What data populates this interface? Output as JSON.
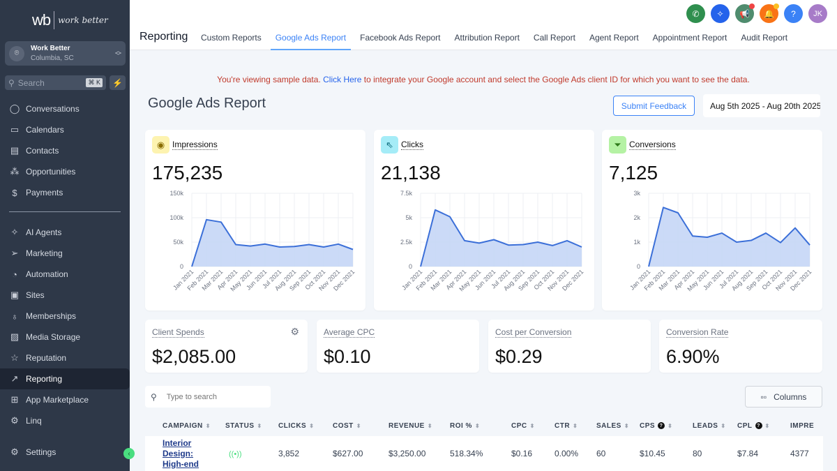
{
  "sidebar": {
    "logo": {
      "mark": "wb",
      "tagline": "work better"
    },
    "account": {
      "name": "Work Better",
      "location": "Columbia, SC"
    },
    "search": {
      "placeholder": "Search",
      "shortcut": "⌘ K"
    },
    "items_top": [
      {
        "label": "Conversations",
        "icon": "chat-bubble-icon"
      },
      {
        "label": "Calendars",
        "icon": "calendar-icon"
      },
      {
        "label": "Contacts",
        "icon": "contacts-book-icon"
      },
      {
        "label": "Opportunities",
        "icon": "opportunities-icon"
      },
      {
        "label": "Payments",
        "icon": "payments-icon"
      }
    ],
    "items_bottom": [
      {
        "label": "AI Agents",
        "icon": "sparkle-icon"
      },
      {
        "label": "Marketing",
        "icon": "send-icon"
      },
      {
        "label": "Automation",
        "icon": "automation-icon"
      },
      {
        "label": "Sites",
        "icon": "sites-icon"
      },
      {
        "label": "Memberships",
        "icon": "award-icon"
      },
      {
        "label": "Media Storage",
        "icon": "image-icon"
      },
      {
        "label": "Reputation",
        "icon": "star-icon"
      },
      {
        "label": "Reporting",
        "icon": "trend-up-icon",
        "active": true
      },
      {
        "label": "App Marketplace",
        "icon": "grid-icon"
      },
      {
        "label": "Linq",
        "icon": "gears-icon"
      }
    ],
    "settings": {
      "label": "Settings",
      "icon": "settings-gear-icon"
    }
  },
  "header": {
    "page_label": "Reporting",
    "tabs": [
      {
        "label": "Custom Reports"
      },
      {
        "label": "Google Ads Report",
        "active": true
      },
      {
        "label": "Facebook Ads Report"
      },
      {
        "label": "Attribution Report"
      },
      {
        "label": "Call Report"
      },
      {
        "label": "Agent Report"
      },
      {
        "label": "Appointment Report"
      },
      {
        "label": "Audit Report"
      }
    ],
    "icons": [
      {
        "name": "phone-icon",
        "glyph": "✆",
        "color": "#2f8f4e"
      },
      {
        "name": "ai-sparkle-icon",
        "glyph": "✧",
        "color": "#2563eb"
      },
      {
        "name": "megaphone-icon",
        "glyph": "📢",
        "color": "#4f8c6e",
        "dot": "#ef4444"
      },
      {
        "name": "bell-icon",
        "glyph": "🔔",
        "color": "#f97316",
        "dot": "#fbbf24"
      },
      {
        "name": "help-icon",
        "glyph": "?",
        "color": "#3b82f6"
      },
      {
        "name": "user-avatar",
        "glyph": "JK",
        "color": "#a77bc8"
      }
    ]
  },
  "notice": {
    "before": "You're viewing sample data. ",
    "link": "Click Here",
    "after": " to integrate your Google account and select the Google Ads client ID for which you want to see the data."
  },
  "report": {
    "title": "Google Ads Report",
    "feedback_button": "Submit Feedback",
    "date_range": "Aug 5th 2025 - Aug 20th 2025"
  },
  "chart_data": [
    {
      "type": "area",
      "title": "Impressions",
      "total": "175,235",
      "icon": "eye-icon",
      "x": [
        "Jan 2021",
        "Feb 2021",
        "Mar 2021",
        "Apr 2021",
        "May 2021",
        "Jun 2021",
        "Jul 2021",
        "Aug 2021",
        "Sep 2021",
        "Oct 2021",
        "Nov 2021",
        "Dec 2021"
      ],
      "values": [
        0,
        96000,
        91000,
        45000,
        42000,
        46000,
        40000,
        41000,
        45000,
        40000,
        46000,
        35000
      ],
      "ylim": [
        0,
        150000
      ],
      "yticks": [
        0,
        50000,
        100000,
        150000
      ],
      "ytick_labels": [
        "0",
        "50k",
        "100k",
        "150k"
      ],
      "grid": true
    },
    {
      "type": "area",
      "title": "Clicks",
      "total": "21,138",
      "icon": "cursor-click-icon",
      "x": [
        "Jan 2021",
        "Feb 2021",
        "Mar 2021",
        "Apr 2021",
        "May 2021",
        "Jun 2021",
        "Jul 2021",
        "Aug 2021",
        "Sep 2021",
        "Oct 2021",
        "Nov 2021",
        "Dec 2021"
      ],
      "values": [
        0,
        5800,
        5100,
        2650,
        2400,
        2750,
        2200,
        2250,
        2500,
        2150,
        2650,
        2000
      ],
      "ylim": [
        0,
        7500
      ],
      "yticks": [
        0,
        2500,
        5000,
        7500
      ],
      "ytick_labels": [
        "0",
        "2.5k",
        "5k",
        "7.5k"
      ],
      "grid": true
    },
    {
      "type": "area",
      "title": "Conversions",
      "total": "7,125",
      "icon": "funnel-icon",
      "x": [
        "Jan 2021",
        "Feb 2021",
        "Mar 2021",
        "Apr 2021",
        "May 2021",
        "Jun 2021",
        "Jul 2021",
        "Aug 2021",
        "Sep 2021",
        "Oct 2021",
        "Nov 2021",
        "Dec 2021"
      ],
      "values": [
        0,
        2420,
        2200,
        1250,
        1200,
        1370,
        1000,
        1070,
        1370,
        980,
        1580,
        880
      ],
      "ylim": [
        0,
        3000
      ],
      "yticks": [
        0,
        1000,
        2000,
        3000
      ],
      "ytick_labels": [
        "0",
        "1k",
        "2k",
        "3k"
      ],
      "grid": true
    }
  ],
  "chart_style": {
    "line": "#3b6fd8",
    "fill": "#c5d6f6",
    "badges": [
      "#fdf3b0",
      "#a5ecf7",
      "#b5f2a4"
    ],
    "badge_fg": [
      "#8a6d00",
      "#0e6c7d",
      "#2f7a1a"
    ]
  },
  "stats": [
    {
      "label": "Client Spends",
      "value": "$2,085.00",
      "has_settings": true
    },
    {
      "label": "Average CPC",
      "value": "$0.10"
    },
    {
      "label": "Cost per Conversion",
      "value": "$0.29"
    },
    {
      "label": "Conversion Rate",
      "value": "6.90%"
    }
  ],
  "table": {
    "search_placeholder": "Type to search",
    "columns_button": "Columns",
    "headers": [
      {
        "label": "CAMPAIGN"
      },
      {
        "label": "STATUS"
      },
      {
        "label": "CLICKS"
      },
      {
        "label": "COST"
      },
      {
        "label": "REVENUE"
      },
      {
        "label": "ROI %"
      },
      {
        "label": "CPC"
      },
      {
        "label": "CTR"
      },
      {
        "label": "SALES"
      },
      {
        "label": "CPS",
        "help": true
      },
      {
        "label": "LEADS"
      },
      {
        "label": "CPL",
        "help": true
      },
      {
        "label": "IMPRE"
      }
    ],
    "rows": [
      {
        "campaign": "Interior Design: High-end",
        "status": "live-icon",
        "clicks": "3,852",
        "cost": "$627.00",
        "revenue": "$3,250.00",
        "roi": "518.34%",
        "cpc": "$0.16",
        "ctr": "0.00%",
        "sales": "60",
        "cps": "$10.45",
        "leads": "80",
        "cpl": "$7.84",
        "impressions": "4377"
      }
    ]
  }
}
